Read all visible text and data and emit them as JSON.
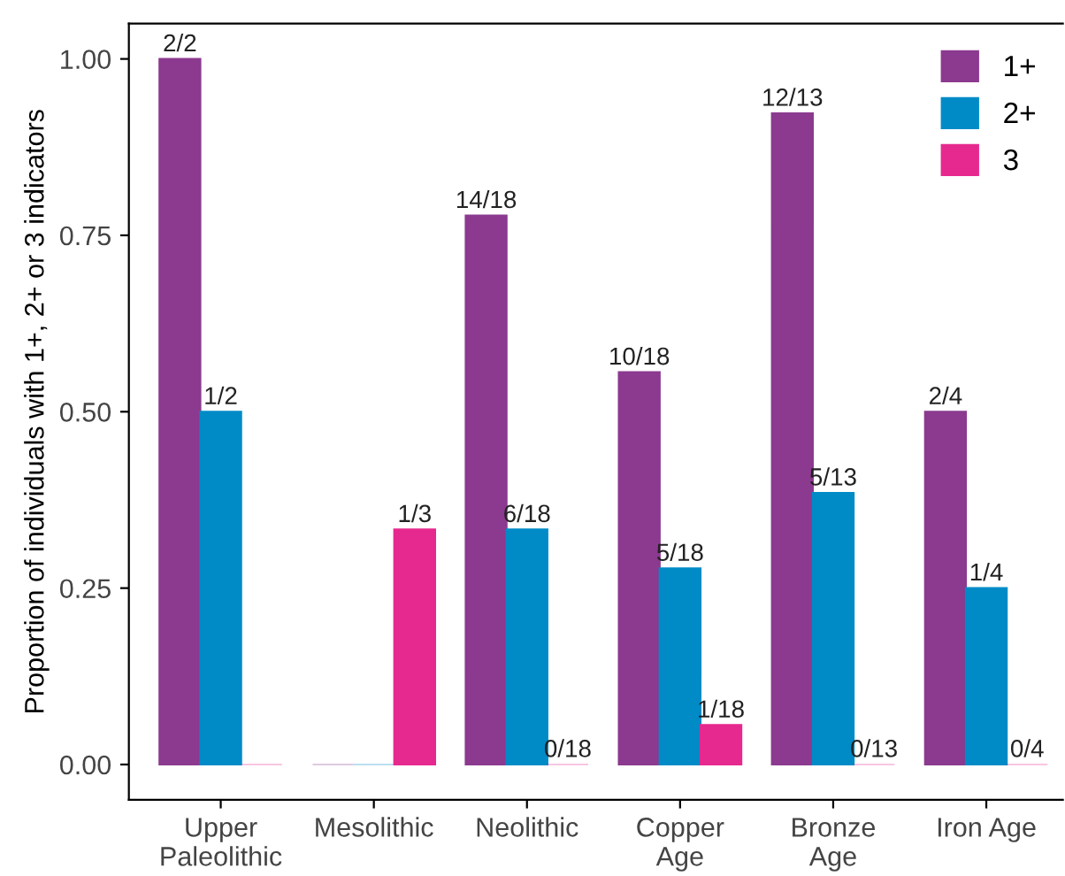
{
  "chart_data": {
    "type": "bar",
    "ylabel": "Proportion of individuals with 1+, 2+ or 3 indicators",
    "categories": [
      "Upper\nPaleolithic",
      "Mesolithic",
      "Neolithic",
      "Copper\nAge",
      "Bronze\nAge",
      "Iron Age"
    ],
    "series": [
      {
        "name": "1+",
        "color": "#8b3a8f",
        "values": [
          1.0,
          0,
          0.778,
          0.556,
          0.923,
          0.5
        ],
        "value_labels": [
          "2/2",
          null,
          "14/18",
          "10/18",
          "12/13",
          "2/4"
        ]
      },
      {
        "name": "2+",
        "color": "#008bc7",
        "values": [
          0.5,
          0,
          0.333,
          0.278,
          0.385,
          0.25
        ],
        "value_labels": [
          "1/2",
          null,
          "6/18",
          "5/18",
          "5/13",
          "1/4"
        ]
      },
      {
        "name": "3",
        "color": "#e6298e",
        "values": [
          0,
          0.333,
          0,
          0.056,
          0,
          0
        ],
        "value_labels": [
          null,
          "1/3",
          "0/18",
          "1/18",
          "0/13",
          "0/4"
        ]
      }
    ],
    "ylim": [
      -0.05,
      1.05
    ],
    "yticks": [
      {
        "value": 0,
        "label": "0.00"
      },
      {
        "value": 0.25,
        "label": "0.25"
      },
      {
        "value": 0.5,
        "label": "0.50"
      },
      {
        "value": 0.75,
        "label": "0.75"
      },
      {
        "value": 1,
        "label": "1.00"
      }
    ],
    "grid": false,
    "legend": "top right"
  }
}
